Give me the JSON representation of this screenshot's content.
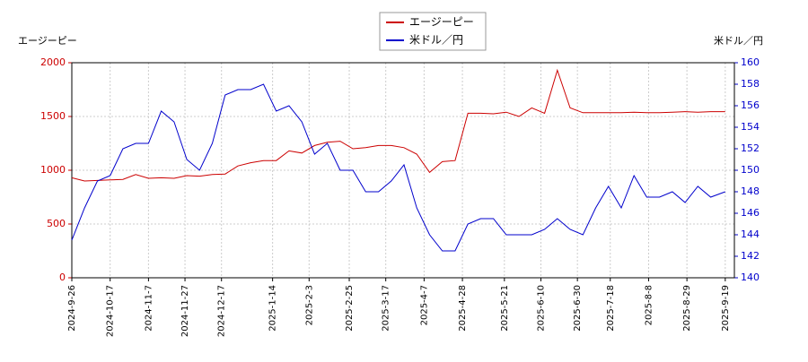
{
  "chart_data": {
    "type": "line",
    "y_label": "エージーピー",
    "y2_label": "米ドル／円",
    "x": [
      "2024-9-26",
      "2024-10-3",
      "2024-10-10",
      "2024-10-17",
      "2024-10-24",
      "2024-10-31",
      "2024-11-7",
      "2024-11-14",
      "2024-11-21",
      "2024-11-28",
      "2024-12-5",
      "2024-12-12",
      "2024-12-19",
      "2024-12-26",
      "2025-1-2",
      "2025-1-9",
      "2025-1-16",
      "2025-1-23",
      "2025-1-30",
      "2025-2-6",
      "2025-2-13",
      "2025-2-20",
      "2025-2-27",
      "2025-3-6",
      "2025-3-13",
      "2025-3-20",
      "2025-3-27",
      "2025-4-3",
      "2025-4-10",
      "2025-4-17",
      "2025-4-24",
      "2025-5-1",
      "2025-5-8",
      "2025-5-15",
      "2025-5-22",
      "2025-5-29",
      "2025-6-5",
      "2025-6-12",
      "2025-6-19",
      "2025-6-26",
      "2025-7-3",
      "2025-7-10",
      "2025-7-17",
      "2025-7-24",
      "2025-7-31",
      "2025-8-7",
      "2025-8-14",
      "2025-8-21",
      "2025-8-28",
      "2025-9-4",
      "2025-9-11",
      "2025-9-19"
    ],
    "series": [
      {
        "name": "エージーピー",
        "color": "#cc0000",
        "axis": "y",
        "values": [
          930,
          900,
          905,
          910,
          915,
          960,
          925,
          930,
          925,
          950,
          945,
          960,
          965,
          1040,
          1070,
          1090,
          1090,
          1180,
          1160,
          1230,
          1260,
          1270,
          1200,
          1210,
          1230,
          1230,
          1210,
          1150,
          980,
          1080,
          1090,
          1530,
          1530,
          1525,
          1540,
          1500,
          1580,
          1530,
          1930,
          1580,
          1535,
          1535,
          1535,
          1535,
          1540,
          1535,
          1535,
          1540,
          1545,
          1540,
          1545,
          1545
        ]
      },
      {
        "name": "米ドル／円",
        "color": "#0000cc",
        "axis": "y2",
        "values": [
          143.5,
          146.5,
          149,
          149.5,
          152,
          152.5,
          152.5,
          155.5,
          154.5,
          151,
          150,
          152.5,
          157,
          157.5,
          157.5,
          158,
          155.5,
          156,
          154.5,
          151.5,
          152.5,
          150,
          150,
          148,
          148,
          149,
          150.5,
          146.5,
          144,
          142.5,
          142.5,
          145,
          145.5,
          145.5,
          144,
          144,
          144,
          144.5,
          145.5,
          144.5,
          144,
          146.5,
          148.5,
          146.5,
          149.5,
          147.5,
          147.5,
          148,
          147,
          148.5,
          147.5,
          148
        ]
      }
    ],
    "xlim": [
      "2024-9-26",
      "2025-9-24"
    ],
    "xticks": [
      "2024-9-26",
      "2024-10-17",
      "2024-11-7",
      "2024-11-27",
      "2024-12-17",
      "2025-1-14",
      "2025-2-3",
      "2025-2-25",
      "2025-3-17",
      "2025-4-7",
      "2025-4-28",
      "2025-5-21",
      "2025-6-10",
      "2025-6-30",
      "2025-7-18",
      "2025-8-8",
      "2025-8-29",
      "2025-9-19"
    ],
    "ylim": [
      0,
      2000
    ],
    "yticks": [
      0,
      500,
      1000,
      1500,
      2000
    ],
    "y2lim": [
      140,
      160
    ],
    "y2ticks": [
      140,
      142,
      144,
      146,
      148,
      150,
      152,
      154,
      156,
      158,
      160
    ],
    "grid": true
  }
}
